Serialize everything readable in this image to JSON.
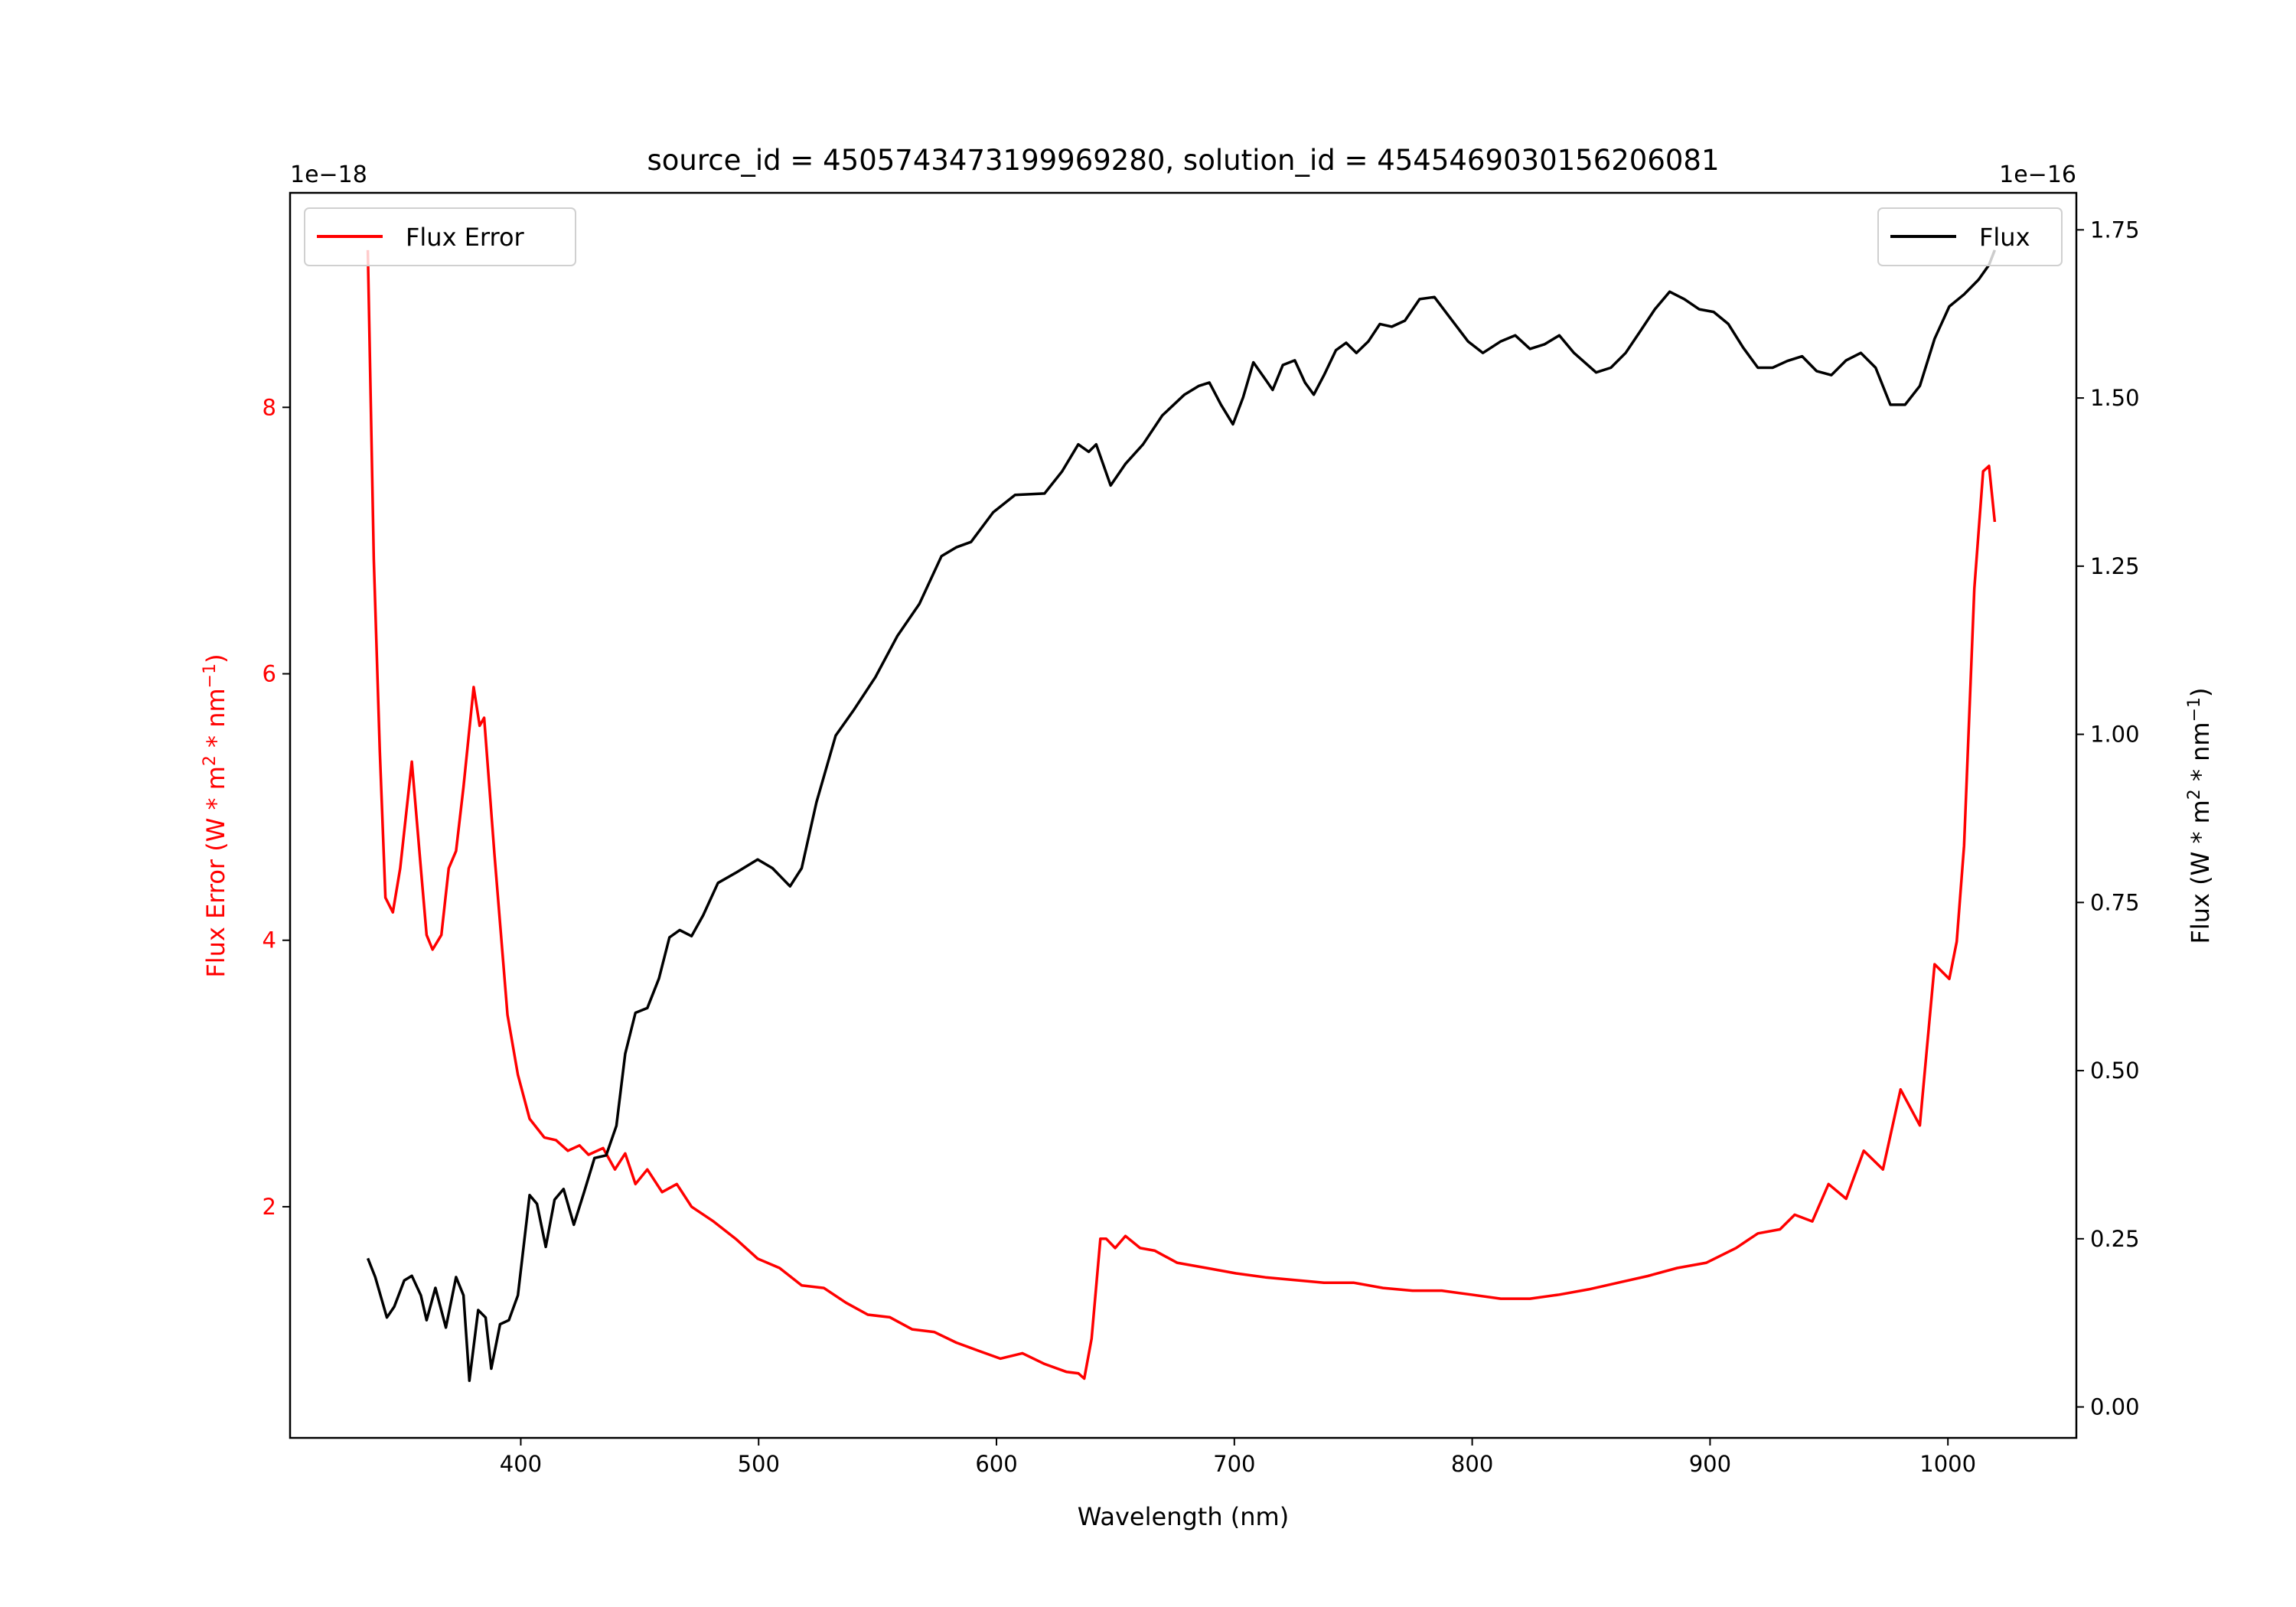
{
  "chart_data": {
    "type": "line",
    "title": "source_id = 4505743473199969280, solution_id = 4545469030156206081",
    "xlabel": "Wavelength (nm)",
    "ylabel_left": "Flux Error (W * m^2 * nm^-1)",
    "ylabel_right": "Flux (W * m^2 * nm^-1)",
    "ylabel_left_parts": [
      "Flux Error (W * m",
      "2",
      " * nm",
      "−1",
      ")"
    ],
    "ylabel_right_parts": [
      "Flux (W * m",
      "2",
      " * nm",
      "−1",
      ")"
    ],
    "left_offset_label": "1e−18",
    "right_offset_label": "1e−16",
    "xlim": [
      303,
      1054
    ],
    "ylim_left": [
      0.265,
      9.61
    ],
    "ylim_right": [
      -0.046,
      1.805
    ],
    "xticks": [
      400,
      500,
      600,
      700,
      800,
      900,
      1000
    ],
    "xtick_labels": [
      "400",
      "500",
      "600",
      "700",
      "800",
      "900",
      "1000"
    ],
    "yticks_left": [
      2,
      4,
      6,
      8
    ],
    "ytick_labels_left": [
      "2",
      "4",
      "6",
      "8"
    ],
    "yticks_right": [
      0,
      0.25,
      0.5,
      0.75,
      1.0,
      1.25,
      1.5,
      1.75
    ],
    "ytick_labels_right": [
      "0.00",
      "0.25",
      "0.50",
      "0.75",
      "1.00",
      "1.25",
      "1.50",
      "1.75"
    ],
    "grid": false,
    "legends": [
      {
        "label": "Flux Error",
        "placement": "top-left",
        "color": "#ff0000"
      },
      {
        "label": "Flux",
        "placement": "top-right",
        "color": "#000000"
      }
    ],
    "series": [
      {
        "name": "Flux Error",
        "axis": "left",
        "color": "#ff0000",
        "x": [
          335.7,
          338.2,
          340.7,
          343.1,
          346.2,
          349.3,
          354.2,
          358,
          360.4,
          362.9,
          366.6,
          369.7,
          372.8,
          375.9,
          380.2,
          382.7,
          384.6,
          388.9,
          394.4,
          398.8,
          403.7,
          409.9,
          414.8,
          419.8,
          424.7,
          428.5,
          434.6,
          439.6,
          443.9,
          448.2,
          453.2,
          459.4,
          465.6,
          471.8,
          481,
          490.3,
          499.6,
          508.8,
          518.1,
          527.4,
          536.7,
          545.9,
          555.2,
          564.5,
          573.8,
          583.1,
          592.3,
          601.6,
          610.9,
          620.2,
          629.5,
          634.4,
          636.9,
          640,
          643.7,
          646.1,
          649.9,
          654.2,
          660.4,
          666.6,
          675.9,
          688.3,
          700.7,
          713.1,
          725.4,
          737.7,
          750.1,
          762.5,
          774.9,
          787.2,
          799.6,
          812,
          824.3,
          836.6,
          849,
          861.4,
          873.8,
          886.2,
          898.5,
          910.9,
          920.1,
          929.4,
          935.6,
          943,
          949.8,
          957.2,
          964.6,
          972.7,
          980.1,
          988.2,
          994.4,
          1000.6,
          1003.7,
          1006.8,
          1011.1,
          1014.8,
          1017.3,
          1019.7
        ],
        "y": [
          9.18,
          6.86,
          5.43,
          4.32,
          4.21,
          4.54,
          5.34,
          4.54,
          4.04,
          3.93,
          4.04,
          4.54,
          4.67,
          5.15,
          5.9,
          5.61,
          5.67,
          4.65,
          3.44,
          2.99,
          2.66,
          2.52,
          2.5,
          2.42,
          2.46,
          2.39,
          2.44,
          2.28,
          2.4,
          2.17,
          2.28,
          2.11,
          2.17,
          2.0,
          1.89,
          1.76,
          1.61,
          1.54,
          1.41,
          1.39,
          1.28,
          1.19,
          1.17,
          1.08,
          1.06,
          0.98,
          0.92,
          0.86,
          0.9,
          0.82,
          0.76,
          0.75,
          0.71,
          1.01,
          1.76,
          1.76,
          1.69,
          1.78,
          1.69,
          1.67,
          1.58,
          1.54,
          1.5,
          1.47,
          1.45,
          1.43,
          1.43,
          1.39,
          1.37,
          1.37,
          1.34,
          1.31,
          1.31,
          1.34,
          1.38,
          1.43,
          1.48,
          1.54,
          1.58,
          1.69,
          1.8,
          1.83,
          1.94,
          1.89,
          2.17,
          2.06,
          2.42,
          2.28,
          2.88,
          2.61,
          3.82,
          3.71,
          3.99,
          4.71,
          6.64,
          7.52,
          7.56,
          7.14
        ]
      },
      {
        "name": "Flux",
        "axis": "right",
        "color": "#000000",
        "x": [
          335.7,
          338.8,
          343.7,
          346.8,
          351,
          354.2,
          358,
          360.4,
          364.1,
          368.5,
          372.8,
          375.9,
          378.4,
          382.1,
          385.2,
          387.6,
          391.3,
          395,
          398.8,
          403.7,
          406.8,
          410.5,
          414.2,
          418,
          422.3,
          426.6,
          431,
          435.9,
          440.2,
          443.9,
          448.2,
          453.2,
          458.1,
          462.5,
          466.8,
          471.8,
          476.7,
          482.9,
          490.3,
          499.6,
          505.8,
          513.2,
          518.1,
          524.3,
          532.4,
          539.8,
          549.1,
          558.3,
          567.6,
          576.9,
          583.1,
          589.3,
          598.6,
          607.8,
          620.2,
          627.6,
          634.4,
          638.8,
          641.9,
          648,
          654.2,
          661.6,
          669.7,
          679,
          685.1,
          689.5,
          694.4,
          699.4,
          703.7,
          708,
          711.8,
          716.1,
          720.4,
          725.4,
          729.7,
          733.4,
          737.7,
          742.7,
          747,
          751.3,
          756.3,
          761.2,
          766.2,
          771.7,
          777.9,
          784.1,
          790.3,
          798.3,
          804.5,
          811.9,
          818.1,
          824.3,
          830.5,
          836.6,
          842.8,
          852.1,
          858.3,
          864.5,
          870.6,
          876.8,
          883,
          889.2,
          895.4,
          901.5,
          907.7,
          913.9,
          920.1,
          926.3,
          932.5,
          938.7,
          944.8,
          951,
          957.2,
          963.4,
          969.6,
          975.8,
          982,
          988.2,
          994.4,
          1000.6,
          1006.8,
          1012.9,
          1017.3,
          1019.7
        ],
        "y": [
          0.221,
          0.193,
          0.133,
          0.149,
          0.188,
          0.195,
          0.166,
          0.129,
          0.177,
          0.118,
          0.193,
          0.166,
          0.039,
          0.144,
          0.133,
          0.057,
          0.123,
          0.129,
          0.166,
          0.315,
          0.302,
          0.238,
          0.308,
          0.324,
          0.271,
          0.319,
          0.37,
          0.374,
          0.418,
          0.525,
          0.586,
          0.593,
          0.637,
          0.698,
          0.709,
          0.7,
          0.731,
          0.779,
          0.794,
          0.814,
          0.801,
          0.774,
          0.801,
          0.899,
          0.998,
          1.035,
          1.085,
          1.146,
          1.194,
          1.265,
          1.278,
          1.286,
          1.33,
          1.356,
          1.358,
          1.391,
          1.431,
          1.42,
          1.431,
          1.37,
          1.402,
          1.431,
          1.474,
          1.505,
          1.518,
          1.523,
          1.49,
          1.461,
          1.501,
          1.553,
          1.534,
          1.512,
          1.549,
          1.556,
          1.523,
          1.505,
          1.534,
          1.571,
          1.582,
          1.567,
          1.584,
          1.61,
          1.606,
          1.615,
          1.647,
          1.65,
          1.621,
          1.584,
          1.567,
          1.584,
          1.593,
          1.573,
          1.58,
          1.593,
          1.567,
          1.538,
          1.545,
          1.567,
          1.599,
          1.632,
          1.658,
          1.647,
          1.632,
          1.628,
          1.61,
          1.575,
          1.545,
          1.545,
          1.555,
          1.562,
          1.54,
          1.534,
          1.556,
          1.567,
          1.545,
          1.49,
          1.49,
          1.518,
          1.588,
          1.636,
          1.654,
          1.676,
          1.698,
          1.72
        ]
      }
    ]
  }
}
